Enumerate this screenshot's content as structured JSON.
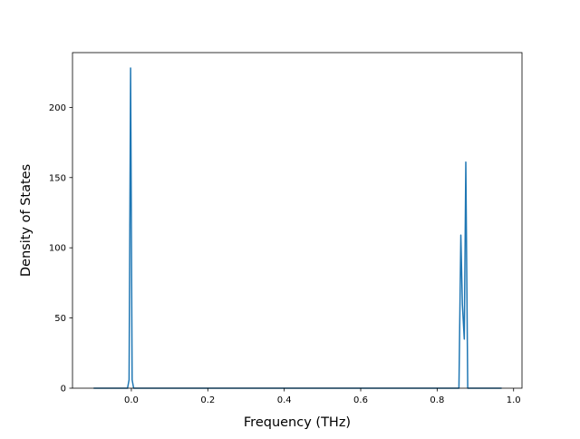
{
  "chart_data": {
    "type": "line",
    "title": "",
    "xlabel": "Frequency (THz)",
    "ylabel": "Density of States",
    "xlim": [
      -0.154,
      1.022
    ],
    "ylim": [
      0,
      239
    ],
    "xticks": [
      0.0,
      0.2,
      0.4,
      0.6,
      0.8,
      1.0
    ],
    "xtick_labels": [
      "0.0",
      "0.2",
      "0.4",
      "0.6",
      "0.8",
      "1.0"
    ],
    "yticks": [
      0,
      50,
      100,
      150,
      200
    ],
    "ytick_labels": [
      "0",
      "50",
      "100",
      "150",
      "200"
    ],
    "grid": false,
    "legend": "none",
    "series": [
      {
        "color": "#1f77b4",
        "x": [
          -0.097,
          -0.01,
          -0.006,
          -0.002,
          0.002,
          0.006,
          0.857,
          0.862,
          0.866,
          0.871,
          0.875,
          0.88,
          0.967
        ],
        "y": [
          0,
          0,
          6,
          228,
          6,
          0,
          0,
          109,
          60,
          35,
          161,
          0,
          0
        ]
      }
    ]
  }
}
